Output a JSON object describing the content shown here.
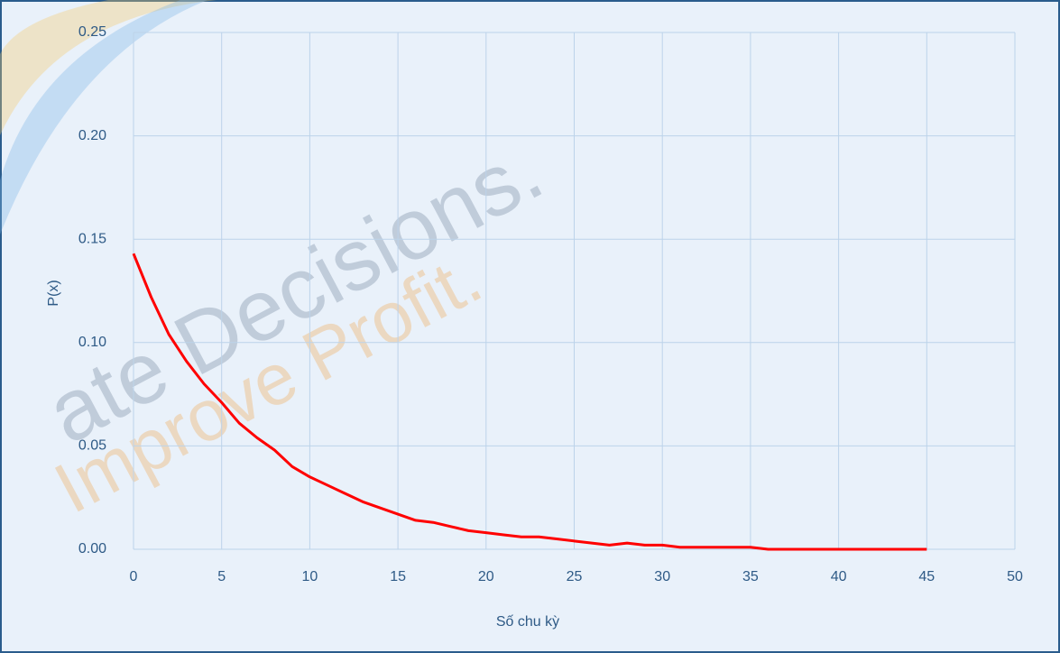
{
  "chart_data": {
    "type": "line",
    "xlabel": "Số chu kỳ",
    "ylabel": "P(x)",
    "x": [
      0,
      1,
      2,
      3,
      4,
      5,
      6,
      7,
      8,
      9,
      10,
      11,
      12,
      13,
      14,
      15,
      16,
      17,
      18,
      19,
      20,
      21,
      22,
      23,
      24,
      25,
      26,
      27,
      28,
      29,
      30,
      31,
      32,
      33,
      34,
      35,
      36,
      37,
      38,
      39,
      40,
      41,
      42,
      43,
      44,
      45
    ],
    "values": [
      0.143,
      0.122,
      0.104,
      0.091,
      0.08,
      0.071,
      0.061,
      0.054,
      0.048,
      0.04,
      0.035,
      0.031,
      0.027,
      0.023,
      0.02,
      0.017,
      0.014,
      0.013,
      0.011,
      0.009,
      0.008,
      0.007,
      0.006,
      0.006,
      0.005,
      0.004,
      0.003,
      0.002,
      0.003,
      0.002,
      0.002,
      0.001,
      0.001,
      0.001,
      0.001,
      0.001,
      0,
      0,
      0,
      0,
      0,
      0,
      0,
      0,
      0,
      0
    ],
    "color": "#ff0000",
    "xlim": [
      0,
      50
    ],
    "xticks": [
      0,
      5,
      10,
      15,
      20,
      25,
      30,
      35,
      40,
      45,
      50
    ],
    "ylim": [
      0,
      0.25
    ],
    "yticks": [
      {
        "value": 0,
        "label": "0.00"
      },
      0.05,
      {
        "value": 0.1,
        "label": "0.10"
      },
      0.15,
      {
        "value": 0.2,
        "label": "0.20"
      },
      0.25
    ],
    "grid": true,
    "watermark": [
      "ate Decisions.",
      "Improve Profit."
    ]
  }
}
